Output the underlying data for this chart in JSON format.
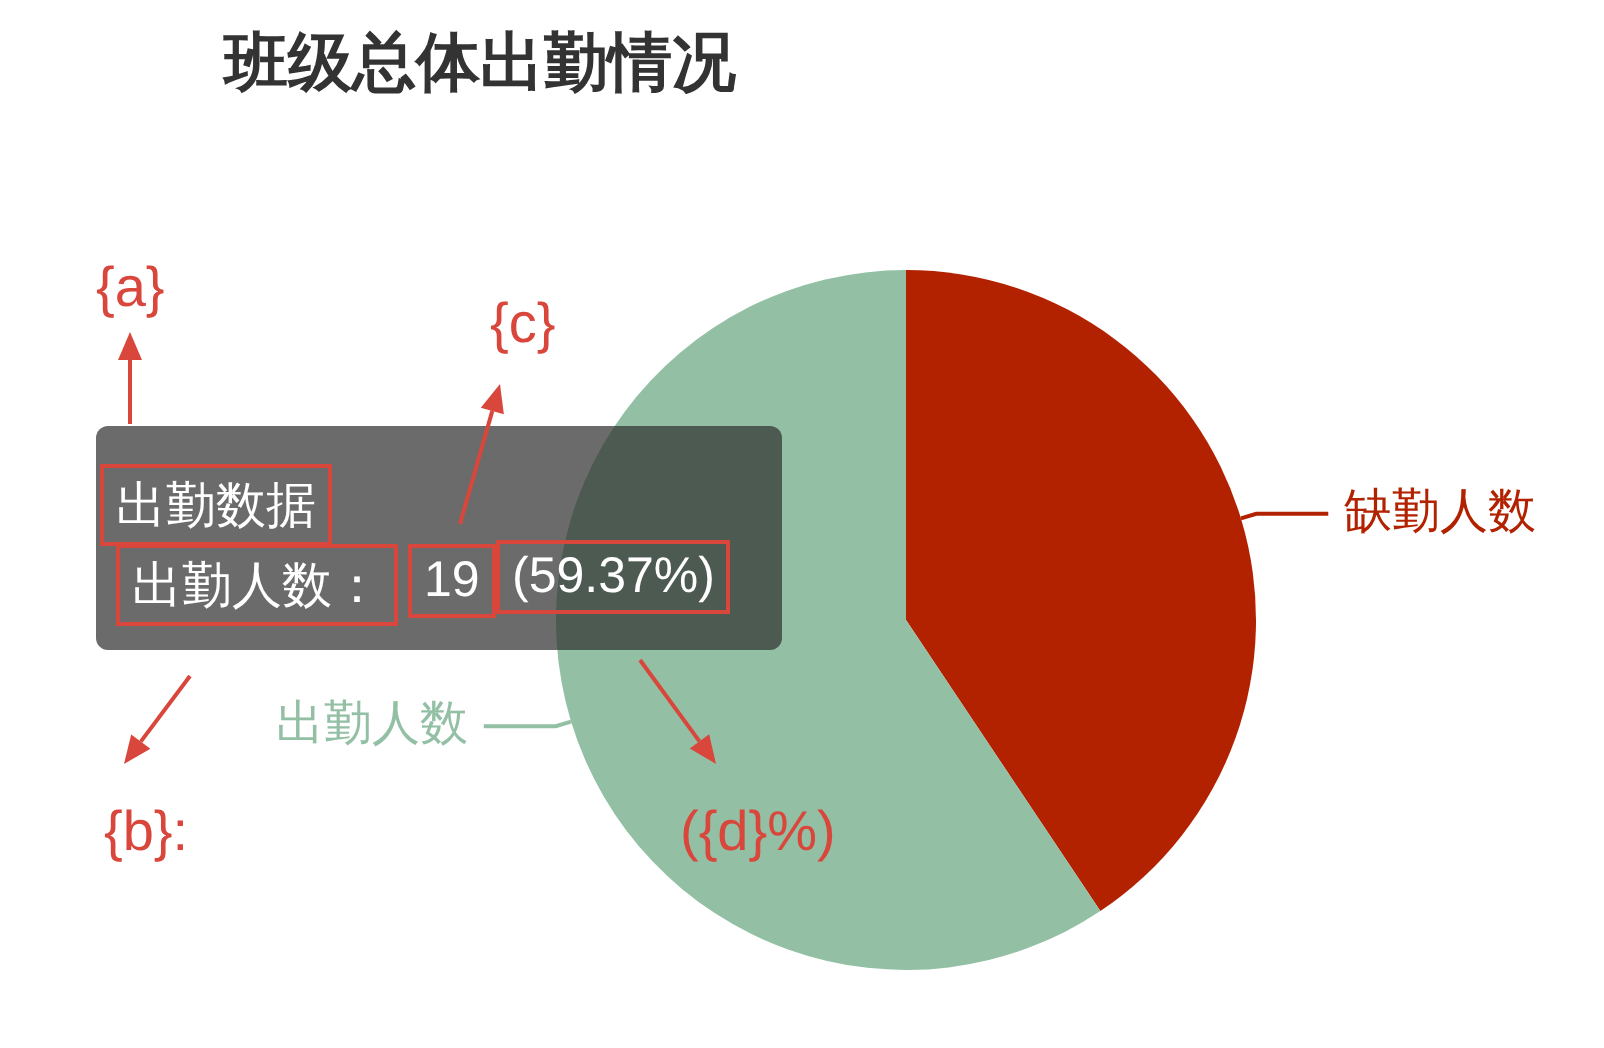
{
  "chart_data": {
    "type": "pie",
    "title": "班级总体出勤情况",
    "categories": [
      "缺勤人数",
      "出勤人数"
    ],
    "values": [
      40.63,
      59.37
    ],
    "colors": [
      "#b22200",
      "#93c0a4"
    ],
    "legend": false,
    "annotations": [
      "{a}",
      "{c}",
      "{b}:",
      "({d}%)",
      "出勤数据",
      "出勤人数：",
      "19",
      "(59.37%)"
    ]
  }
}
